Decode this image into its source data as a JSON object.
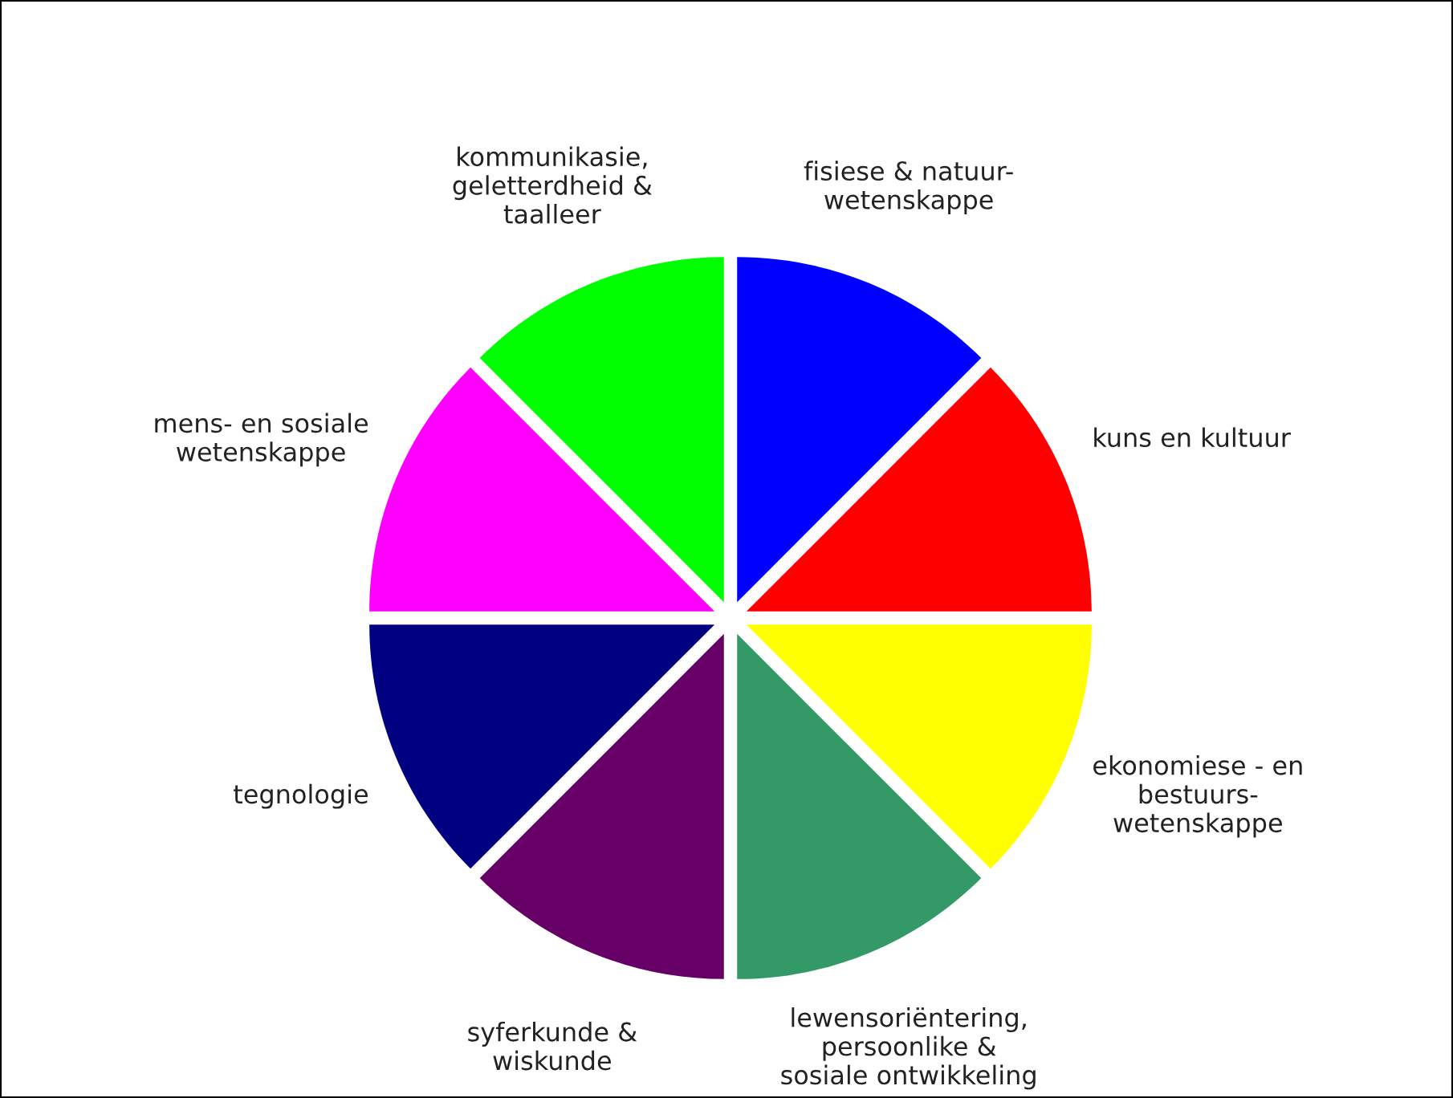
{
  "chart_data": {
    "type": "pie",
    "categories": [
      "fisiese & natuur-\nwetenskappe",
      "kuns en kultuur",
      "ekonomiese - en\nbestuurs-\nwetenskappe",
      "lewensoriëntering,\npersoonlike &\nsosiale ontwikkeling",
      "syferkunde &\nwiskunde",
      "tegnologie",
      "mens- en sosiale\nwetenskappe",
      "kommunikasie,\ngeletterdheid &\ntaalleer"
    ],
    "values": [
      12.5,
      12.5,
      12.5,
      12.5,
      12.5,
      12.5,
      12.5,
      12.5
    ],
    "colors": [
      "#0000ff",
      "#ff0000",
      "#ffff00",
      "#339966",
      "#660066",
      "#000080",
      "#ff00ff",
      "#00ff00"
    ]
  }
}
